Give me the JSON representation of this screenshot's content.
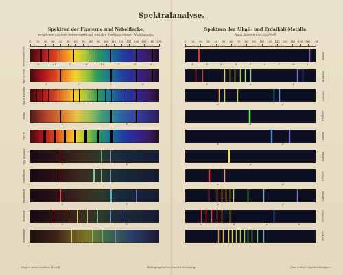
{
  "title": "Spektralanalyse.",
  "left": {
    "title": "Spektren der Fixsterne und Nebelflecke,",
    "subtitle": "verglichen mit dem Sonnenspektrum und den Spektren einiger Nichtmetalle.",
    "scale": [
      "0",
      "10",
      "20",
      "30",
      "40",
      "50",
      "60",
      "70",
      "80",
      "90",
      "100",
      "110",
      "120",
      "130",
      "140",
      "150",
      "160",
      "170"
    ],
    "rows": [
      {
        "label": "Sonnenspektrum",
        "type": "sun",
        "letters": [
          "A",
          "a B",
          "C",
          "D",
          "E b",
          "F",
          "G",
          "H"
        ]
      },
      {
        "label": "Typ I a Vega",
        "type": "vega",
        "letters": [
          "C",
          "F",
          "f",
          "H"
        ]
      },
      {
        "label": "Typ II Arcturus",
        "type": "arcturus",
        "letters": []
      },
      {
        "label": "Sirius",
        "type": "sirius",
        "letters": [
          "C",
          "F"
        ]
      },
      {
        "label": "Typ III",
        "type": "typ3",
        "letters": []
      },
      {
        "label": "Typ IV Nebel",
        "type": "typ4",
        "letters": [
          "C",
          "F"
        ]
      },
      {
        "label": "Nebelflecke",
        "type": "nebula",
        "letters": []
      },
      {
        "label": "Wasserstoff",
        "type": "hydrogen",
        "letters": [
          "C",
          "F"
        ]
      },
      {
        "label": "Stickstoff",
        "type": "nitrogen",
        "letters": [
          "C",
          "F"
        ]
      },
      {
        "label": "Kohlenstoff",
        "type": "carbon",
        "letters": []
      }
    ]
  },
  "right": {
    "title": "Spektren der Alkali- und Erdalkali-Metalle.",
    "subtitle": "Nach Bunsen und Kirchhoff.",
    "scale": [
      "0",
      "10",
      "20",
      "30",
      "40",
      "50",
      "60",
      "70",
      "80",
      "90",
      "100",
      "110",
      "120",
      "130",
      "140",
      "150",
      "160",
      "170"
    ],
    "rows": [
      {
        "label": "Kalium",
        "type": "k",
        "letters": [
          "A",
          "B",
          "C",
          "D",
          "E",
          "b",
          "F",
          "G",
          "H"
        ]
      },
      {
        "label": "Rubidium",
        "type": "rb",
        "letters": [
          "K",
          "a",
          "β"
        ]
      },
      {
        "label": "Caesium",
        "type": "cs",
        "letters": [
          "α",
          "β"
        ]
      },
      {
        "label": "Thallium",
        "type": "tl",
        "letters": [
          "α"
        ]
      },
      {
        "label": "Indium",
        "type": "in",
        "letters": [
          "α",
          "β"
        ]
      },
      {
        "label": "Natrium",
        "type": "na",
        "letters": [
          "α"
        ]
      },
      {
        "label": "Lithium",
        "type": "li",
        "letters": [
          "α",
          "β"
        ]
      },
      {
        "label": "Calcium",
        "type": "ca",
        "letters": [
          "α",
          "β"
        ]
      },
      {
        "label": "Strontium",
        "type": "sr",
        "letters": [
          "α",
          "β",
          "γ",
          "δ"
        ]
      },
      {
        "label": "Baryum",
        "type": "ba",
        "letters": []
      }
    ]
  },
  "footer": {
    "left": "Meyers Konv.-Lexikon, 4. Aufl.",
    "center": "Bibliographisches Institut in Leipzig.",
    "right": "Zum Artikel »Spektralanalyse«."
  }
}
